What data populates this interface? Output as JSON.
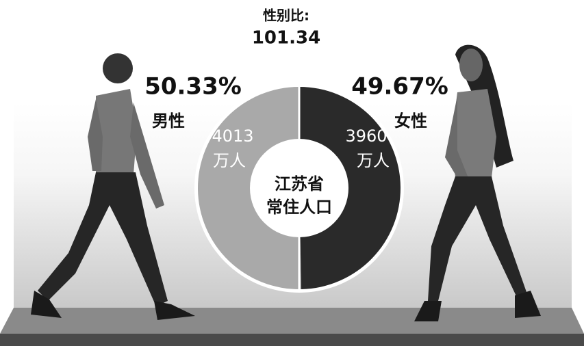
{
  "chart_data": {
    "type": "pie",
    "donut": true,
    "title": "性别比:",
    "subtitle": "101.34",
    "center_label": [
      "江苏省",
      "常住人口"
    ],
    "categories": [
      "男性",
      "女性"
    ],
    "values": [
      50.33,
      49.67
    ],
    "value_labels": [
      "50.33%",
      "49.67%"
    ],
    "counts": [
      4013,
      3960
    ],
    "count_units": [
      "万人",
      "万人"
    ],
    "colors": [
      "#a9a9a9",
      "#2a2a2a"
    ]
  }
}
